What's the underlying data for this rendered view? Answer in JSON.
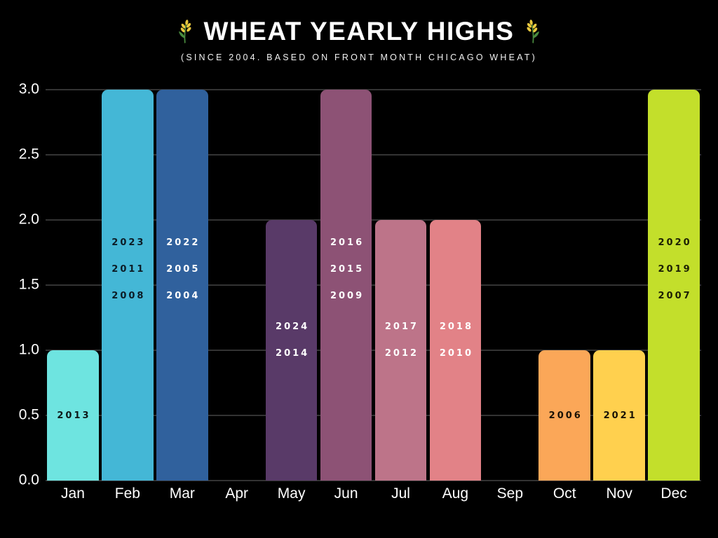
{
  "header": {
    "title": "WHEAT YEARLY HIGHS",
    "subtitle": "(SINCE 2004. BASED ON FRONT MONTH CHICAGO WHEAT)"
  },
  "icons": {
    "wheat": "🌾"
  },
  "colors": {
    "background": "#000000",
    "grid": "#333333",
    "axis_text": "#ffffff",
    "title_text": "#ffffff",
    "wheat_grain": "#e9c83e",
    "wheat_stem": "#4a8c3f"
  },
  "chart_data": {
    "type": "bar",
    "title": "WHEAT YEARLY HIGHS",
    "subtitle": "(SINCE 2004. BASED ON FRONT MONTH CHICAGO WHEAT)",
    "xlabel": "",
    "ylabel": "",
    "ylim": [
      0,
      3
    ],
    "yticks": [
      0.0,
      0.5,
      1.0,
      1.5,
      2.0,
      2.5,
      3.0
    ],
    "grid": true,
    "legend": false,
    "categories": [
      "Jan",
      "Feb",
      "Mar",
      "Apr",
      "May",
      "Jun",
      "Jul",
      "Aug",
      "Sep",
      "Oct",
      "Nov",
      "Dec"
    ],
    "values": [
      1,
      3,
      3,
      0,
      2,
      3,
      2,
      2,
      0,
      1,
      1,
      3
    ],
    "bar_year_labels": [
      [
        "2013"
      ],
      [
        "2023",
        "2011",
        "2008"
      ],
      [
        "2022",
        "2005",
        "2004"
      ],
      [],
      [
        "2024",
        "2014"
      ],
      [
        "2016",
        "2015",
        "2009"
      ],
      [
        "2017",
        "2012"
      ],
      [
        "2018",
        "2010"
      ],
      [],
      [
        "2006"
      ],
      [
        "2021"
      ],
      [
        "2020",
        "2019",
        "2007"
      ]
    ],
    "bar_colors": [
      "#6ee4e0",
      "#44b7d6",
      "#30619d",
      "#000000",
      "#593a68",
      "#8d5275",
      "#bd7489",
      "#e28287",
      "#000000",
      "#fba758",
      "#ffd04e",
      "#c3df2b"
    ],
    "bar_label_colors": [
      "#0e1a1a",
      "#0c1c26",
      "#ffffff",
      "#ffffff",
      "#ffffff",
      "#ffffff",
      "#ffffff",
      "#ffffff",
      "#ffffff",
      "#1a1206",
      "#1a1406",
      "#1c2004"
    ]
  }
}
